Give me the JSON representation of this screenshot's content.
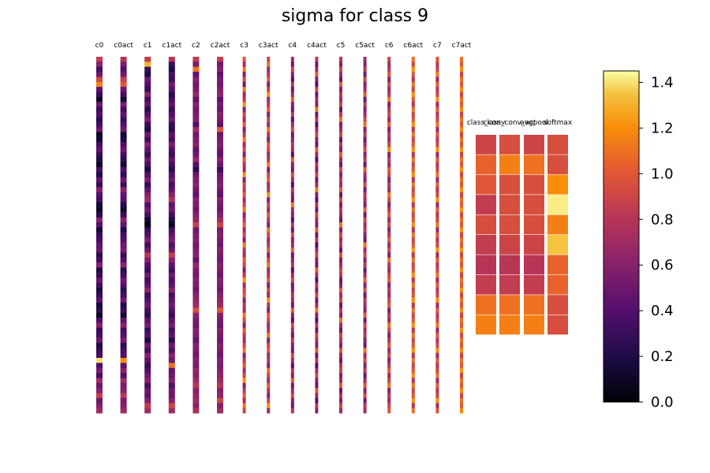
{
  "chart_data": {
    "type": "heatmap",
    "title": "sigma for class 9",
    "colormap": "inferno",
    "vmin": 0.0,
    "vmax": 1.45,
    "colorbar_ticks": [
      "0.0",
      "0.2",
      "0.4",
      "0.6",
      "0.8",
      "1.0",
      "1.2",
      "1.4"
    ],
    "colorbar_tick_values": [
      0.0,
      0.2,
      0.4,
      0.6,
      0.8,
      1.0,
      1.2,
      1.4
    ],
    "column_strips": [
      {
        "label": "c0",
        "values": [
          0.85,
          0.6,
          0.35,
          0.5,
          0.9,
          1.15,
          0.45,
          0.3,
          0.1,
          0.5,
          0.3,
          0.4,
          0.25,
          0.35,
          0.5,
          0.1,
          0.15,
          0.35,
          0.45,
          0.3,
          0.2,
          0.1,
          0.35,
          0.2,
          0.45,
          0.3,
          0.6,
          0.4,
          0.35,
          0.15,
          0.1,
          0.25,
          0.6,
          0.4,
          0.15,
          0.3,
          0.35,
          0.45,
          0.5,
          0.25,
          0.35,
          0.6,
          0.2,
          0.3,
          0.5,
          0.35,
          0.2,
          0.3,
          0.45,
          0.15,
          0.25,
          0.1,
          0.4,
          0.6,
          0.3,
          0.35,
          0.5,
          0.2,
          0.3,
          0.35,
          1.4,
          0.4,
          0.55,
          0.35,
          0.7,
          0.5,
          0.6,
          0.85,
          0.5,
          0.6,
          0.7
        ]
      },
      {
        "label": "c0act",
        "values": [
          0.8,
          0.55,
          0.4,
          0.5,
          0.85,
          1.0,
          0.5,
          0.35,
          0.15,
          0.55,
          0.35,
          0.45,
          0.3,
          0.4,
          0.5,
          0.15,
          0.2,
          0.4,
          0.5,
          0.35,
          0.25,
          0.15,
          0.4,
          0.25,
          0.5,
          0.3,
          0.6,
          0.45,
          0.4,
          0.2,
          0.15,
          0.3,
          0.6,
          0.45,
          0.2,
          0.35,
          0.4,
          0.5,
          0.55,
          0.3,
          0.4,
          0.6,
          0.25,
          0.35,
          0.5,
          0.4,
          0.25,
          0.35,
          0.5,
          0.2,
          0.3,
          0.15,
          0.45,
          0.6,
          0.35,
          0.4,
          0.55,
          0.25,
          0.35,
          0.4,
          1.2,
          0.45,
          0.6,
          0.4,
          0.7,
          0.55,
          0.6,
          0.8,
          0.55,
          0.6,
          0.7
        ]
      },
      {
        "label": "c1",
        "values": [
          0.85,
          1.3,
          0.3,
          0.2,
          0.5,
          0.4,
          0.3,
          0.6,
          0.35,
          0.45,
          0.25,
          0.4,
          0.55,
          0.3,
          0.2,
          0.5,
          0.35,
          0.6,
          0.45,
          0.3,
          0.5,
          0.35,
          0.2,
          0.4,
          0.55,
          0.3,
          0.45,
          0.6,
          0.7,
          0.4,
          0.5,
          0.35,
          0.15,
          0.05,
          0.3,
          0.4,
          0.55,
          0.35,
          0.5,
          0.8,
          0.6,
          0.4,
          0.3,
          0.5,
          0.35,
          0.45,
          0.6,
          0.3,
          0.4,
          0.5,
          0.35,
          0.25,
          0.45,
          0.55,
          0.3,
          0.4,
          0.2,
          0.5,
          0.35,
          0.6,
          0.45,
          0.3,
          0.4,
          0.5,
          0.6,
          0.35,
          0.5,
          0.45,
          0.6,
          0.85,
          0.7
        ]
      },
      {
        "label": "c1act",
        "values": [
          0.8,
          0.3,
          0.2,
          0.35,
          0.3,
          0.5,
          0.4,
          0.25,
          0.35,
          0.45,
          0.3,
          0.4,
          0.5,
          0.3,
          0.25,
          0.45,
          0.35,
          0.55,
          0.4,
          0.3,
          0.45,
          0.35,
          0.25,
          0.4,
          0.5,
          0.35,
          0.45,
          0.6,
          0.75,
          0.45,
          0.5,
          0.35,
          0.2,
          0.1,
          0.35,
          0.45,
          0.55,
          0.4,
          0.5,
          0.85,
          0.6,
          0.45,
          0.35,
          0.5,
          0.4,
          0.45,
          0.6,
          0.35,
          0.45,
          0.5,
          0.4,
          0.3,
          0.45,
          0.55,
          0.35,
          0.45,
          0.25,
          0.5,
          0.4,
          0.6,
          0.5,
          1.1,
          0.45,
          0.5,
          0.6,
          0.4,
          0.5,
          0.5,
          0.6,
          0.9,
          0.7
        ]
      },
      {
        "label": "c2",
        "values": [
          0.85,
          0.55,
          1.1,
          0.45,
          0.6,
          0.5,
          0.55,
          0.65,
          0.45,
          0.6,
          0.5,
          0.55,
          0.6,
          0.4,
          0.7,
          0.5,
          0.55,
          0.6,
          0.45,
          0.5,
          0.65,
          0.4,
          0.25,
          0.5,
          0.55,
          0.6,
          0.5,
          0.45,
          0.6,
          0.55,
          0.5,
          0.6,
          0.65,
          0.85,
          0.5,
          0.55,
          0.6,
          0.5,
          0.55,
          0.6,
          0.45,
          0.65,
          0.55,
          0.5,
          0.6,
          0.55,
          0.5,
          0.6,
          0.65,
          0.7,
          0.95,
          0.6,
          0.55,
          0.5,
          0.6,
          0.55,
          0.45,
          0.6,
          0.55,
          0.5,
          0.6,
          0.55,
          0.65,
          0.6,
          0.7,
          0.8,
          0.6,
          0.65,
          0.7,
          0.6,
          0.75
        ]
      },
      {
        "label": "c2act",
        "values": [
          0.85,
          0.5,
          0.6,
          0.45,
          0.55,
          0.5,
          0.6,
          0.65,
          0.45,
          0.55,
          0.5,
          0.6,
          0.55,
          0.45,
          1.0,
          0.5,
          0.55,
          0.6,
          0.5,
          0.45,
          0.6,
          0.5,
          0.3,
          0.5,
          0.55,
          0.6,
          0.5,
          0.45,
          0.6,
          0.55,
          0.5,
          0.6,
          0.7,
          0.9,
          0.55,
          0.6,
          0.55,
          0.5,
          0.6,
          0.55,
          0.5,
          0.6,
          0.55,
          0.5,
          0.6,
          0.55,
          0.5,
          0.6,
          0.65,
          0.7,
          1.0,
          0.6,
          0.55,
          0.5,
          0.6,
          0.55,
          0.5,
          0.6,
          0.55,
          0.5,
          0.6,
          0.55,
          0.6,
          0.65,
          0.7,
          0.8,
          0.6,
          0.65,
          0.9,
          0.6,
          0.7
        ]
      },
      {
        "label": "c3",
        "values": [
          1.0,
          0.7,
          1.1,
          0.6,
          0.9,
          0.5,
          1.1,
          0.7,
          0.8,
          1.2,
          0.6,
          0.9,
          0.7,
          1.0,
          0.6,
          0.8,
          1.1,
          0.7,
          0.9,
          0.6,
          1.0,
          0.8,
          0.7,
          1.2,
          0.6,
          0.9,
          0.8,
          1.0,
          0.7,
          0.9,
          1.1,
          0.6,
          0.8,
          1.0,
          0.7,
          0.9,
          0.6,
          1.1,
          0.8,
          0.7,
          1.0,
          0.9,
          0.6,
          0.8,
          1.2,
          0.7,
          0.9,
          1.0,
          0.6,
          0.8,
          0.7,
          1.1,
          0.9,
          0.6,
          1.0,
          0.8,
          0.7,
          0.9,
          1.1,
          0.6,
          0.8,
          1.0,
          0.7,
          0.9,
          1.2,
          0.6,
          0.8,
          1.0,
          0.7,
          1.1,
          0.9
        ]
      },
      {
        "label": "c3act",
        "values": [
          0.9,
          1.1,
          0.7,
          0.8,
          1.0,
          0.6,
          0.9,
          1.2,
          0.7,
          0.8,
          1.0,
          0.6,
          0.9,
          0.7,
          1.1,
          0.8,
          0.6,
          1.0,
          0.9,
          0.7,
          0.8,
          1.1,
          0.6,
          0.9,
          1.0,
          0.7,
          0.8,
          1.2,
          0.6,
          0.9,
          0.7,
          1.0,
          0.8,
          0.6,
          1.1,
          0.9,
          0.7,
          0.8,
          1.0,
          0.6,
          0.9,
          1.1,
          0.7,
          0.8,
          1.0,
          0.6,
          0.9,
          0.7,
          1.2,
          0.8,
          0.6,
          1.0,
          0.9,
          0.7,
          0.8,
          1.1,
          0.6,
          0.9,
          1.0,
          0.7,
          0.8,
          0.6,
          1.1,
          0.9,
          0.7,
          1.0,
          0.8,
          0.6,
          0.9,
          1.2,
          0.7
        ]
      },
      {
        "label": "c4",
        "values": [
          0.7,
          0.5,
          0.9,
          0.6,
          0.4,
          0.8,
          0.5,
          0.7,
          1.0,
          0.6,
          0.5,
          0.8,
          0.4,
          0.7,
          0.9,
          0.5,
          0.6,
          0.8,
          0.7,
          0.4,
          1.0,
          0.6,
          0.5,
          0.9,
          0.7,
          0.4,
          0.8,
          0.6,
          0.5,
          1.1,
          0.7,
          0.6,
          0.4,
          0.8,
          0.5,
          0.9,
          0.6,
          0.7,
          1.0,
          0.5,
          0.6,
          0.8,
          0.4,
          0.7,
          0.9,
          0.5,
          0.6,
          0.8,
          0.7,
          0.5,
          1.0,
          0.6,
          0.4,
          0.9,
          0.7,
          0.5,
          0.8,
          0.6,
          0.5,
          0.9,
          0.7,
          0.4,
          0.8,
          0.6,
          1.0,
          0.5,
          0.7,
          0.9,
          0.6,
          0.5,
          0.8
        ]
      },
      {
        "label": "c4act",
        "values": [
          0.8,
          0.5,
          0.7,
          1.0,
          0.6,
          0.4,
          0.9,
          0.5,
          0.7,
          0.6,
          1.1,
          0.5,
          0.8,
          0.4,
          0.7,
          0.9,
          0.6,
          0.5,
          1.0,
          0.7,
          0.4,
          0.8,
          0.6,
          0.9,
          0.5,
          0.7,
          1.1,
          0.6,
          0.4,
          0.8,
          0.5,
          0.9,
          0.7,
          0.6,
          1.0,
          0.5,
          0.8,
          0.4,
          0.7,
          0.9,
          0.6,
          0.5,
          1.0,
          0.7,
          0.4,
          0.8,
          0.6,
          0.9,
          0.5,
          0.7,
          1.1,
          0.6,
          0.4,
          0.8,
          0.5,
          0.9,
          0.7,
          0.6,
          1.0,
          0.5,
          0.8,
          0.4,
          0.7,
          0.9,
          0.6,
          0.5,
          1.0,
          0.7,
          0.4,
          0.8,
          0.6
        ]
      },
      {
        "label": "c5",
        "values": [
          0.8,
          0.6,
          0.9,
          0.7,
          0.5,
          1.0,
          0.6,
          0.8,
          0.7,
          0.9,
          0.5,
          0.8,
          1.1,
          0.6,
          0.7,
          0.9,
          0.5,
          0.8,
          0.6,
          1.0,
          0.7,
          0.5,
          0.9,
          0.6,
          0.8,
          0.7,
          1.0,
          0.5,
          0.9,
          0.6,
          0.8,
          0.7,
          0.5,
          1.1,
          0.6,
          0.9,
          0.7,
          0.8,
          0.5,
          1.0,
          0.6,
          0.7,
          0.9,
          0.8,
          0.5,
          0.6,
          1.0,
          0.7,
          0.9,
          0.5,
          0.8,
          0.6,
          1.1,
          0.7,
          0.5,
          0.9,
          0.8,
          0.6,
          1.0,
          0.7,
          0.5,
          0.8,
          0.9,
          0.6,
          0.7,
          1.0,
          0.5,
          0.8,
          0.6,
          0.9,
          0.7
        ]
      },
      {
        "label": "c5act",
        "values": [
          0.7,
          0.6,
          0.8,
          0.5,
          0.9,
          0.6,
          0.7,
          1.0,
          0.5,
          0.8,
          0.6,
          0.7,
          0.9,
          1.1,
          0.6,
          0.8,
          0.5,
          0.7,
          0.9,
          0.6,
          0.8,
          0.5,
          1.0,
          0.7,
          0.6,
          0.9,
          0.5,
          0.8,
          0.7,
          0.6,
          1.0,
          0.5,
          0.9,
          0.7,
          0.8,
          0.6,
          0.5,
          1.1,
          0.7,
          0.9,
          0.6,
          0.8,
          0.5,
          0.7,
          1.0,
          0.6,
          0.9,
          0.5,
          0.8,
          0.7,
          0.6,
          1.0,
          0.5,
          0.9,
          0.7,
          0.8,
          0.6,
          0.5,
          1.1,
          0.7,
          0.9,
          0.6,
          0.8,
          0.5,
          0.7,
          1.0,
          0.6,
          0.9,
          0.5,
          0.8,
          0.7
        ]
      },
      {
        "label": "c6",
        "values": [
          0.9,
          0.7,
          0.8,
          1.0,
          0.6,
          0.9,
          0.7,
          0.8,
          1.1,
          0.6,
          0.8,
          0.9,
          0.7,
          1.0,
          0.6,
          0.8,
          0.7,
          0.9,
          1.2,
          0.6,
          0.8,
          0.7,
          1.0,
          0.9,
          0.6,
          0.8,
          0.7,
          1.1,
          0.9,
          0.6,
          0.8,
          1.0,
          0.7,
          0.9,
          0.6,
          0.8,
          1.0,
          0.7,
          0.9,
          0.6,
          1.1,
          0.8,
          0.7,
          0.9,
          1.0,
          0.6,
          0.8,
          0.7,
          0.9,
          1.0,
          0.6,
          0.8,
          0.7,
          1.1,
          0.9,
          0.6,
          0.8,
          1.0,
          0.7,
          0.9,
          0.6,
          0.8,
          1.0,
          0.7,
          0.9,
          1.1,
          0.6,
          0.8,
          0.7,
          0.9,
          1.0
        ]
      },
      {
        "label": "c6act",
        "values": [
          1.1,
          0.9,
          1.2,
          1.0,
          0.8,
          1.1,
          0.9,
          1.2,
          1.0,
          0.8,
          1.1,
          0.9,
          1.0,
          1.2,
          0.8,
          1.1,
          0.9,
          1.0,
          1.2,
          0.8,
          1.1,
          0.9,
          1.0,
          1.2,
          0.8,
          1.1,
          0.9,
          1.0,
          1.2,
          0.8,
          1.1,
          0.9,
          1.0,
          1.2,
          0.8,
          1.1,
          0.9,
          1.0,
          1.2,
          0.8,
          1.1,
          0.9,
          1.0,
          1.2,
          0.8,
          1.1,
          0.9,
          1.0,
          1.2,
          0.8,
          1.1,
          0.9,
          1.0,
          1.2,
          0.8,
          1.1,
          0.9,
          1.0,
          1.2,
          0.8,
          1.1,
          0.9,
          1.0,
          1.2,
          0.8,
          1.1,
          0.9,
          1.0,
          1.2,
          0.8,
          1.1
        ]
      },
      {
        "label": "c7",
        "values": [
          1.0,
          0.8,
          0.9,
          1.1,
          0.7,
          1.0,
          0.8,
          0.9,
          1.2,
          0.7,
          1.0,
          0.8,
          0.9,
          1.1,
          0.7,
          1.0,
          0.8,
          0.9,
          1.2,
          0.7,
          1.0,
          0.8,
          0.9,
          1.1,
          0.7,
          1.0,
          0.8,
          0.9,
          1.2,
          0.7,
          1.0,
          0.8,
          0.9,
          1.1,
          0.7,
          1.0,
          0.8,
          0.9,
          1.2,
          0.7,
          1.0,
          0.8,
          0.9,
          1.1,
          0.7,
          1.0,
          0.8,
          0.9,
          1.2,
          0.7,
          1.0,
          0.8,
          0.9,
          1.1,
          0.7,
          1.0,
          0.8,
          0.9,
          1.2,
          0.7,
          1.0,
          0.8,
          0.9,
          1.1,
          0.7,
          1.0,
          0.8,
          0.9,
          1.2,
          0.7,
          1.0
        ]
      },
      {
        "label": "c7act",
        "values": [
          1.1,
          1.0,
          1.2,
          0.9,
          1.1,
          1.0,
          1.2,
          0.9,
          1.1,
          1.0,
          1.2,
          0.9,
          1.1,
          1.0,
          1.2,
          0.9,
          1.1,
          1.0,
          1.2,
          0.9,
          1.1,
          1.0,
          1.2,
          0.9,
          1.1,
          1.0,
          1.2,
          0.9,
          1.1,
          1.0,
          1.2,
          0.9,
          1.1,
          1.0,
          1.2,
          0.9,
          1.1,
          1.0,
          1.2,
          0.9,
          1.1,
          1.0,
          1.2,
          0.9,
          1.1,
          1.0,
          1.2,
          0.9,
          1.1,
          1.0,
          1.2,
          0.9,
          1.1,
          1.0,
          1.2,
          0.9,
          1.1,
          1.0,
          1.2,
          0.9,
          1.1,
          1.0,
          1.2,
          0.9,
          1.1,
          1.0,
          1.2,
          0.9,
          1.1,
          1.0,
          1.2
        ]
      }
    ],
    "right_block": {
      "labels": [
        "class_conv",
        "class_conv_act",
        "avgpool",
        "softmax"
      ],
      "rows": [
        [
          0.9,
          0.95,
          0.9,
          0.95
        ],
        [
          1.05,
          1.15,
          1.1,
          0.95
        ],
        [
          1.0,
          0.95,
          0.95,
          1.2
        ],
        [
          0.85,
          0.95,
          0.95,
          1.42
        ],
        [
          0.95,
          0.95,
          0.95,
          1.15
        ],
        [
          0.85,
          0.9,
          0.9,
          1.35
        ],
        [
          0.8,
          0.8,
          0.8,
          1.05
        ],
        [
          0.85,
          0.85,
          0.85,
          1.05
        ],
        [
          1.1,
          1.1,
          1.1,
          0.95
        ],
        [
          1.15,
          1.15,
          1.15,
          0.95
        ]
      ]
    }
  }
}
